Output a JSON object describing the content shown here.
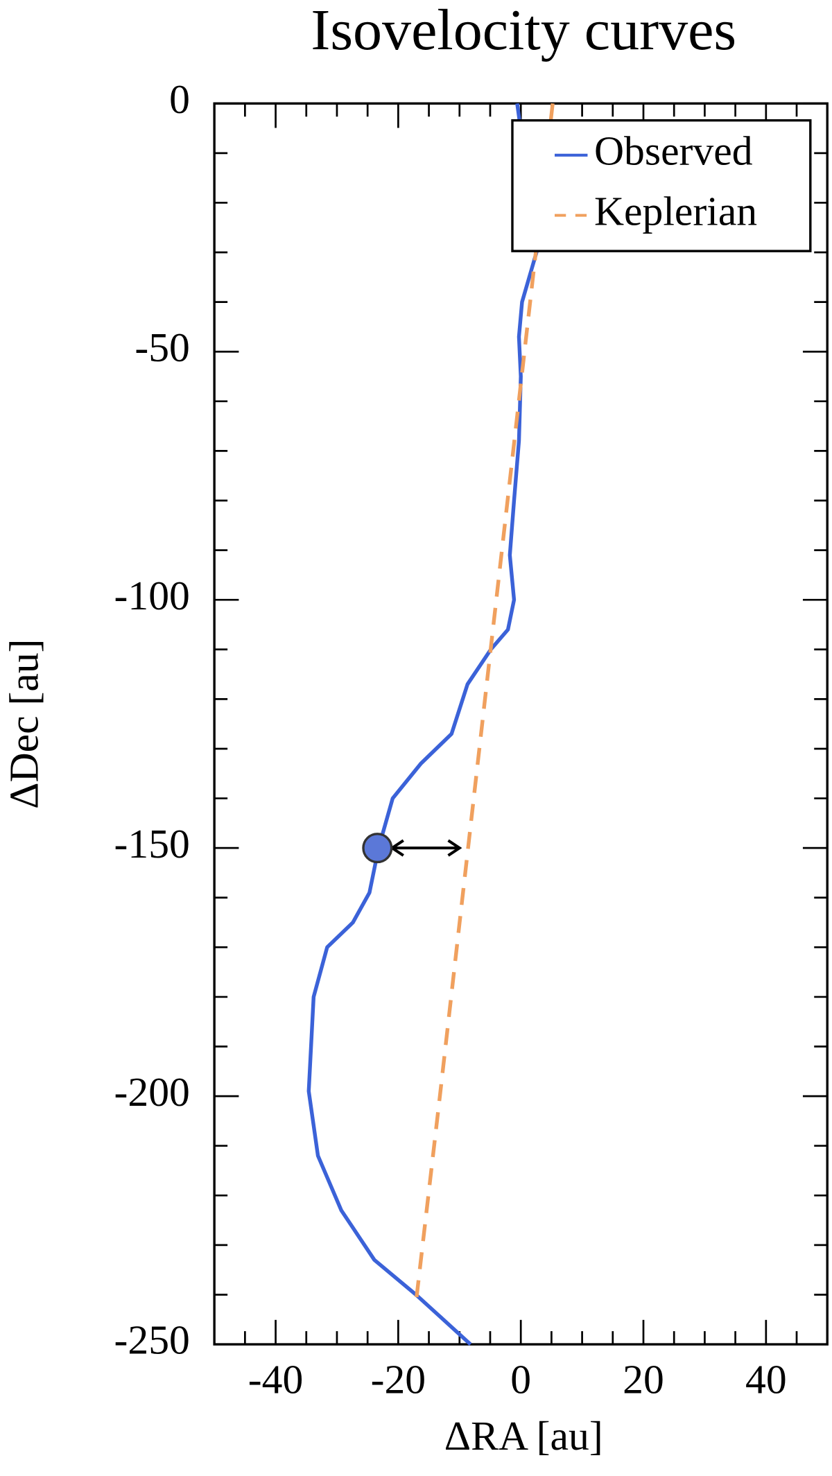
{
  "chart_data": {
    "type": "line",
    "title": "Isovelocity curves",
    "x_label": "ΔRA [au]",
    "y_label": "ΔDec [au]",
    "xlim": [
      -50,
      50
    ],
    "ylim": [
      -250,
      0
    ],
    "xticks": [
      -40,
      -20,
      0,
      20,
      40
    ],
    "yticks": [
      -250,
      -200,
      -150,
      -100,
      -50,
      0
    ],
    "xminorticks": [
      -45,
      -35,
      -30,
      -25,
      -15,
      -10,
      -5,
      5,
      10,
      15,
      25,
      30,
      35,
      45
    ],
    "yminorticks": [
      -240,
      -230,
      -220,
      -210,
      -190,
      -180,
      -170,
      -160,
      -140,
      -130,
      -120,
      -110,
      -90,
      -80,
      -70,
      -60,
      -40,
      -30,
      -20,
      -10
    ],
    "legend": "upper right",
    "series": [
      {
        "name": "Observed",
        "color": "#3b62d8",
        "style": "solid",
        "x": [
          -0.6,
          2.7,
          0.2,
          -0.3,
          0,
          -0.3,
          -1.1,
          -1.8,
          -1.1,
          -2.1,
          -4.9,
          -8.7,
          -11.3,
          -16.3,
          -20.9,
          -23.2,
          -24.7,
          -27.4,
          -31.6,
          -33.8,
          -34.6,
          -33.1,
          -29.3,
          -23.9,
          -17.1,
          -8.2
        ],
        "values": [
          0,
          -29.4,
          -40,
          -47,
          -55,
          -68,
          -80,
          -91,
          -100,
          -106,
          -110,
          -117,
          -127,
          -133,
          -140,
          -150,
          -159,
          -165,
          -170,
          -180,
          -199,
          -212,
          -223,
          -233,
          -240,
          -250
        ]
      },
      {
        "name": "Keplerian",
        "color": "#f0a05e",
        "style": "dashed",
        "x": [
          5.2,
          0.6,
          -4,
          -8.6,
          -13.2,
          -17.1
        ],
        "values": [
          0,
          -50,
          -100,
          -150,
          -200,
          -241.5
        ]
      }
    ],
    "marker": {
      "x": -23.4,
      "y": -150,
      "color": "#5b78d8"
    },
    "arrow": {
      "x": [
        -21,
        -10
      ],
      "y": -150
    }
  }
}
